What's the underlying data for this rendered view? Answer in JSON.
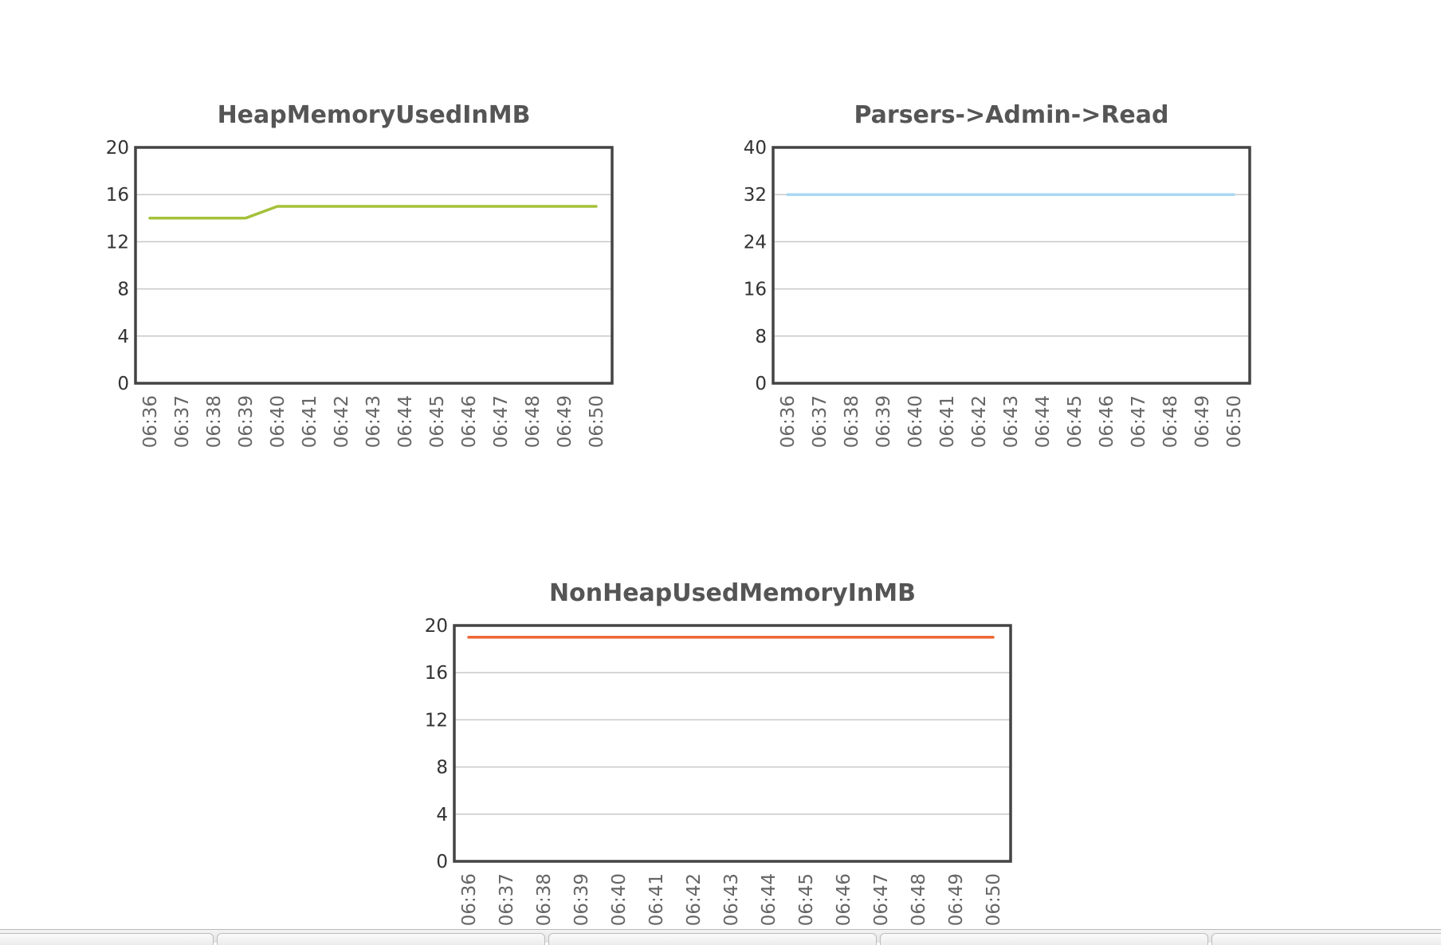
{
  "chart_data": [
    {
      "type": "line",
      "title": "HeapMemoryUsedInMB",
      "x": [
        "06:36",
        "06:37",
        "06:38",
        "06:39",
        "06:40",
        "06:41",
        "06:42",
        "06:43",
        "06:44",
        "06:45",
        "06:46",
        "06:47",
        "06:48",
        "06:49",
        "06:50"
      ],
      "series": [
        {
          "values": [
            14,
            14,
            14,
            14,
            15,
            15,
            15,
            15,
            15,
            15,
            15,
            15,
            15,
            15,
            15
          ],
          "color": "#a4c13a"
        }
      ],
      "yticks": [
        0,
        4,
        8,
        12,
        16,
        20
      ],
      "ylim": [
        0,
        20
      ],
      "xlabel": "",
      "ylabel": "",
      "grid": true
    },
    {
      "type": "line",
      "title": "Parsers->Admin->Read",
      "x": [
        "06:36",
        "06:37",
        "06:38",
        "06:39",
        "06:40",
        "06:41",
        "06:42",
        "06:43",
        "06:44",
        "06:45",
        "06:46",
        "06:47",
        "06:48",
        "06:49",
        "06:50"
      ],
      "series": [
        {
          "values": [
            32,
            32,
            32,
            32,
            32,
            32,
            32,
            32,
            32,
            32,
            32,
            32,
            32,
            32,
            32
          ],
          "color": "#a9d7f2"
        }
      ],
      "yticks": [
        0,
        8,
        16,
        24,
        32,
        40
      ],
      "ylim": [
        0,
        40
      ],
      "xlabel": "",
      "ylabel": "",
      "grid": true
    },
    {
      "type": "line",
      "title": "NonHeapUsedMemoryInMB",
      "x": [
        "06:36",
        "06:37",
        "06:38",
        "06:39",
        "06:40",
        "06:41",
        "06:42",
        "06:43",
        "06:44",
        "06:45",
        "06:46",
        "06:47",
        "06:48",
        "06:49",
        "06:50"
      ],
      "series": [
        {
          "values": [
            19,
            19,
            19,
            19,
            19,
            19,
            19,
            19,
            19,
            19,
            19,
            19,
            19,
            19,
            19
          ],
          "color": "#ee6633"
        }
      ],
      "yticks": [
        0,
        4,
        8,
        12,
        16,
        20
      ],
      "ylim": [
        0,
        20
      ],
      "xlabel": "",
      "ylabel": "",
      "grid": true
    }
  ]
}
